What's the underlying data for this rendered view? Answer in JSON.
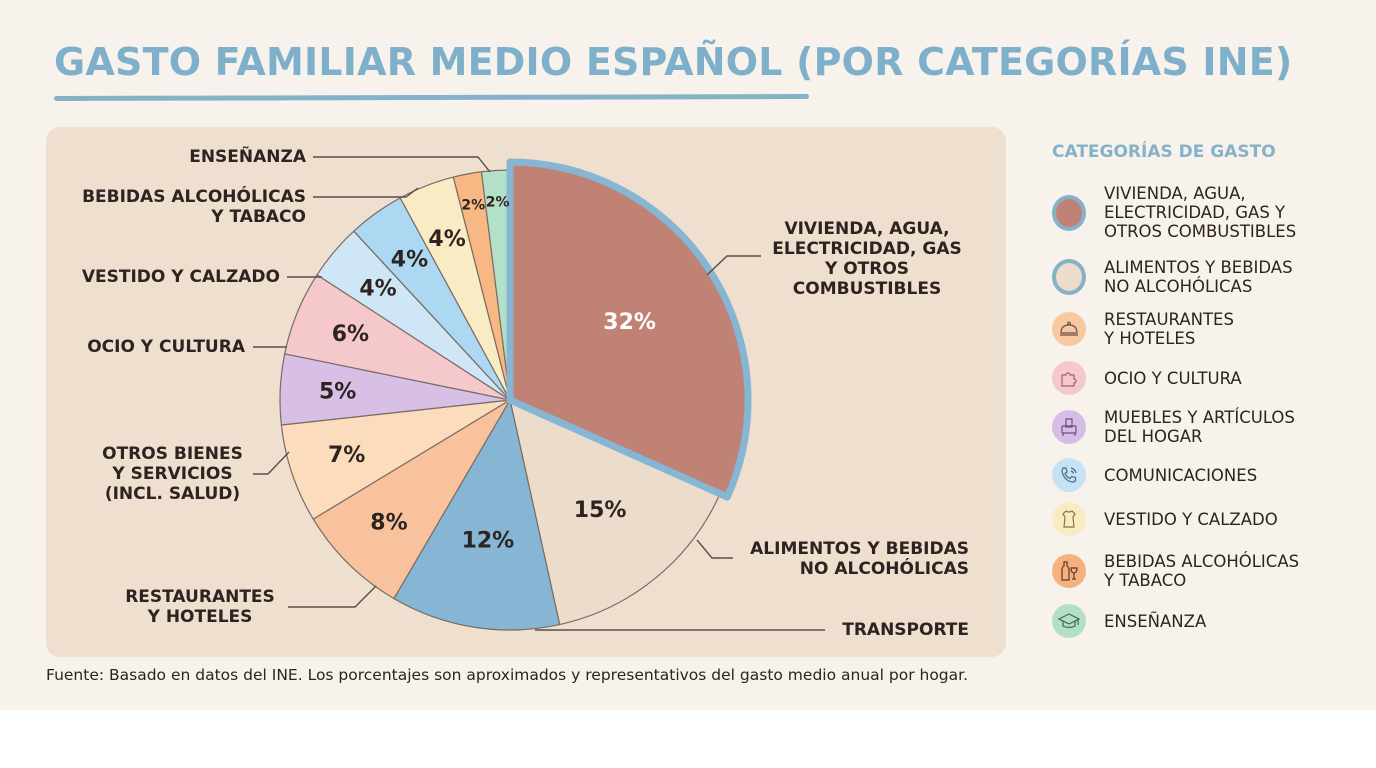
{
  "title": "GASTO FAMILIAR MEDIO ESPAÑOL (POR CATEGORÍAS INE)",
  "footer": "Fuente: Basado en datos del INE. Los porcentajes son aproximados y representativos del gasto medio anual por hogar.",
  "legend": {
    "title": "CATEGORÍAS DE GASTO",
    "items": [
      {
        "label": "VIVIENDA, AGUA,\nELECTRICIDAD, GAS Y\nOTROS COMBUSTIBLES",
        "icon": "filled-circle",
        "color": "#c08274",
        "border": "#86b2c9"
      },
      {
        "label": "ALIMENTOS Y BEBIDAS\nNO ALCOHÓLICAS",
        "icon": "filled-circle",
        "color": "#ecdccb",
        "border": "#86b2c9"
      },
      {
        "label": "RESTAURANTES\nY HOTELES",
        "icon": "cloche-icon",
        "color": "#f8c8a0"
      },
      {
        "label": "OCIO Y CULTURA",
        "icon": "puzzle-icon",
        "color": "#f4c8cc"
      },
      {
        "label": "MUEBLES Y ARTÍCULOS\nDEL HOGAR",
        "icon": "armchair-icon",
        "color": "#d6bde6"
      },
      {
        "label": "COMUNICACIONES",
        "icon": "phone-icon",
        "color": "#c8e2f5"
      },
      {
        "label": "VESTIDO Y CALZADO",
        "icon": "dress-icon",
        "color": "#f8ecc2"
      },
      {
        "label": "BEBIDAS ALCOHÓLICAS\nY TABACO",
        "icon": "bottle-glass-icon",
        "color": "#f6b27e"
      },
      {
        "label": "ENSEÑANZA",
        "icon": "graduation-cap-icon",
        "color": "#b2dfc6"
      }
    ]
  },
  "external_labels": {
    "ensenanza": "ENSEÑANZA",
    "bebidas_1": "BEBIDAS ALCOHÓLICAS",
    "bebidas_2": "Y TABACO",
    "vestido": "VESTIDO Y CALZADO",
    "ocio": "OCIO Y CULTURA",
    "otros_1": "OTROS BIENES",
    "otros_2": "Y SERVICIOS",
    "otros_3": "(INCL. SALUD)",
    "restaurantes_1": "RESTAURANTES",
    "restaurantes_2": "Y HOTELES",
    "vivienda_1": "VIVIENDA, AGUA,",
    "vivienda_2": "ELECTRICIDAD, GAS",
    "vivienda_3": "Y OTROS",
    "vivienda_4": "COMBUSTIBLES",
    "alimentos_1": "ALIMENTOS Y BEBIDAS",
    "alimentos_2": "NO ALCOHÓLICAS",
    "transporte": "TRANSPORTE"
  },
  "chart_data": {
    "type": "pie",
    "title": "GASTO FAMILIAR MEDIO ESPAÑOL (POR CATEGORÍAS INE)",
    "start": "top",
    "direction": "clockwise",
    "highlighted": "Vivienda, agua, electricidad, gas y otros combustibles",
    "slices": [
      {
        "name": "Vivienda, agua, electricidad, gas y otros combustibles",
        "value": 32,
        "label": "32%",
        "color": "#c08274",
        "label_color": "#ffffff"
      },
      {
        "name": "Alimentos y bebidas no alcohólicas",
        "value": 15,
        "label": "15%",
        "color": "#ecdccb",
        "label_color": "#2d2320"
      },
      {
        "name": "Transporte",
        "value": 12,
        "label": "12%",
        "color": "#86b6d3",
        "label_color": "#2d2320"
      },
      {
        "name": "Restaurantes y hoteles",
        "value": 8,
        "label": "8%",
        "color": "#f8c39c",
        "label_color": "#2d2320"
      },
      {
        "name": "Otros bienes y servicios (incl. salud)",
        "value": 7,
        "label": "7%",
        "color": "#fbdcbc",
        "label_color": "#2d2320"
      },
      {
        "name": "Muebles y artículos del hogar",
        "value": 5,
        "label": "5%",
        "color": "#d8bfe6",
        "label_color": "#2d2320"
      },
      {
        "name": "Ocio y cultura",
        "value": 6,
        "label": "6%",
        "color": "#f5c8cb",
        "label_color": "#2d2320"
      },
      {
        "name": "Comunicaciones",
        "value": 4,
        "label": "4%",
        "color": "#cfe6f7",
        "label_color": "#2d2320"
      },
      {
        "name": "Vestido y calzado",
        "value": 4,
        "label": "4%",
        "color": "#acd8f1",
        "label_color": "#2d2320"
      },
      {
        "name": "Bebidas alcohólicas y tabaco",
        "value": 4,
        "label": "4%",
        "color": "#f9ecc4",
        "label_color": "#2d2320"
      },
      {
        "name": "Bebidas alcohólicas y tabaco (2)",
        "value": 2,
        "label": "2%",
        "color": "#f7b884",
        "label_color": "#2d2320"
      },
      {
        "name": "Enseñanza",
        "value": 2,
        "label": "2%",
        "color": "#b3e0c8",
        "label_color": "#2d2320"
      }
    ]
  }
}
